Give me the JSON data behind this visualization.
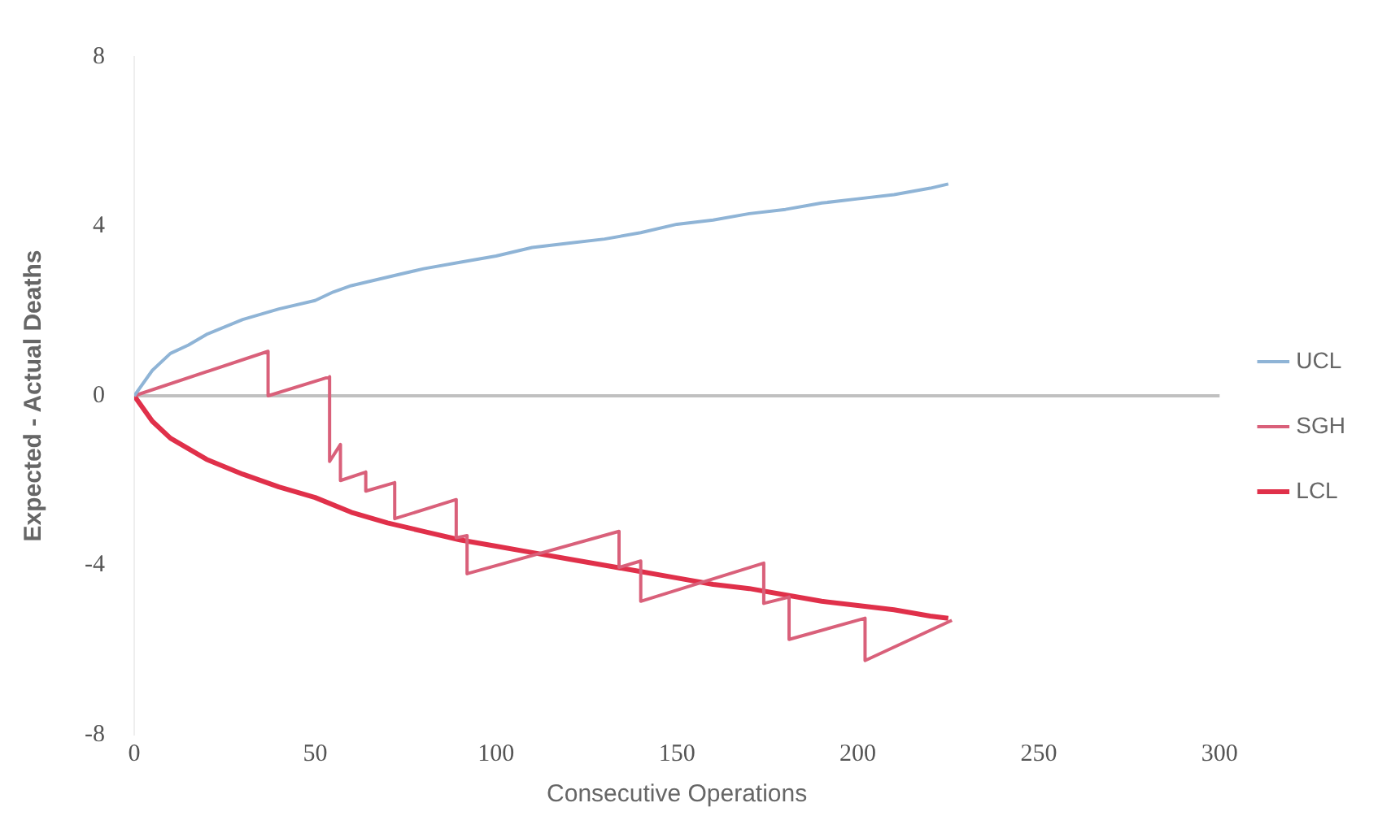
{
  "chart_data": {
    "type": "line",
    "xlabel": "Consecutive Operations",
    "ylabel": "Expected - Actual Deaths",
    "xlim": [
      0,
      300
    ],
    "xticks": [
      0,
      50,
      100,
      150,
      200,
      250,
      300
    ],
    "ylim": [
      -8,
      8
    ],
    "yticks": [
      -8,
      -4,
      0,
      4,
      8
    ],
    "grid": false,
    "legend": "right",
    "marker": "none",
    "line_style": "solid",
    "ref_lines": [
      {
        "axis": "y",
        "value": 0,
        "label": null,
        "color": "#c0c0c0"
      }
    ],
    "series": [
      {
        "name": "UCL",
        "color": "#8fb4d6",
        "x": [
          0,
          5,
          10,
          15,
          20,
          30,
          40,
          50,
          55,
          60,
          70,
          80,
          90,
          100,
          110,
          120,
          130,
          140,
          150,
          160,
          170,
          180,
          190,
          200,
          210,
          220,
          225
        ],
        "values": [
          0,
          0.6,
          1.0,
          1.2,
          1.45,
          1.8,
          2.05,
          2.25,
          2.45,
          2.6,
          2.8,
          3.0,
          3.15,
          3.3,
          3.5,
          3.6,
          3.7,
          3.85,
          4.05,
          4.15,
          4.3,
          4.4,
          4.55,
          4.65,
          4.75,
          4.9,
          5.0
        ]
      },
      {
        "name": "SGH",
        "color": "#d9607a",
        "x": [
          0,
          37,
          37,
          54,
          54,
          57,
          57,
          64,
          64,
          72,
          72,
          89,
          89,
          92,
          92,
          134,
          134,
          140,
          140,
          174,
          174,
          181,
          181,
          202,
          202,
          226
        ],
        "values": [
          0,
          1.05,
          0,
          0.45,
          -1.55,
          -1.15,
          -2.0,
          -1.8,
          -2.25,
          -2.05,
          -2.9,
          -2.45,
          -3.35,
          -3.3,
          -4.2,
          -3.2,
          -4.05,
          -3.9,
          -4.85,
          -3.95,
          -4.9,
          -4.75,
          -5.75,
          -5.25,
          -6.25,
          -5.3
        ]
      },
      {
        "name": "LCL",
        "color": "#e0304a",
        "x": [
          0,
          5,
          10,
          15,
          20,
          30,
          40,
          50,
          60,
          70,
          80,
          90,
          100,
          110,
          120,
          130,
          140,
          150,
          160,
          170,
          180,
          190,
          200,
          210,
          220,
          225
        ],
        "values": [
          0,
          -0.6,
          -1.0,
          -1.25,
          -1.5,
          -1.85,
          -2.15,
          -2.4,
          -2.75,
          -3.0,
          -3.2,
          -3.4,
          -3.55,
          -3.7,
          -3.85,
          -4.0,
          -4.15,
          -4.3,
          -4.45,
          -4.55,
          -4.7,
          -4.85,
          -4.95,
          -5.05,
          -5.2,
          -5.25
        ]
      }
    ]
  }
}
